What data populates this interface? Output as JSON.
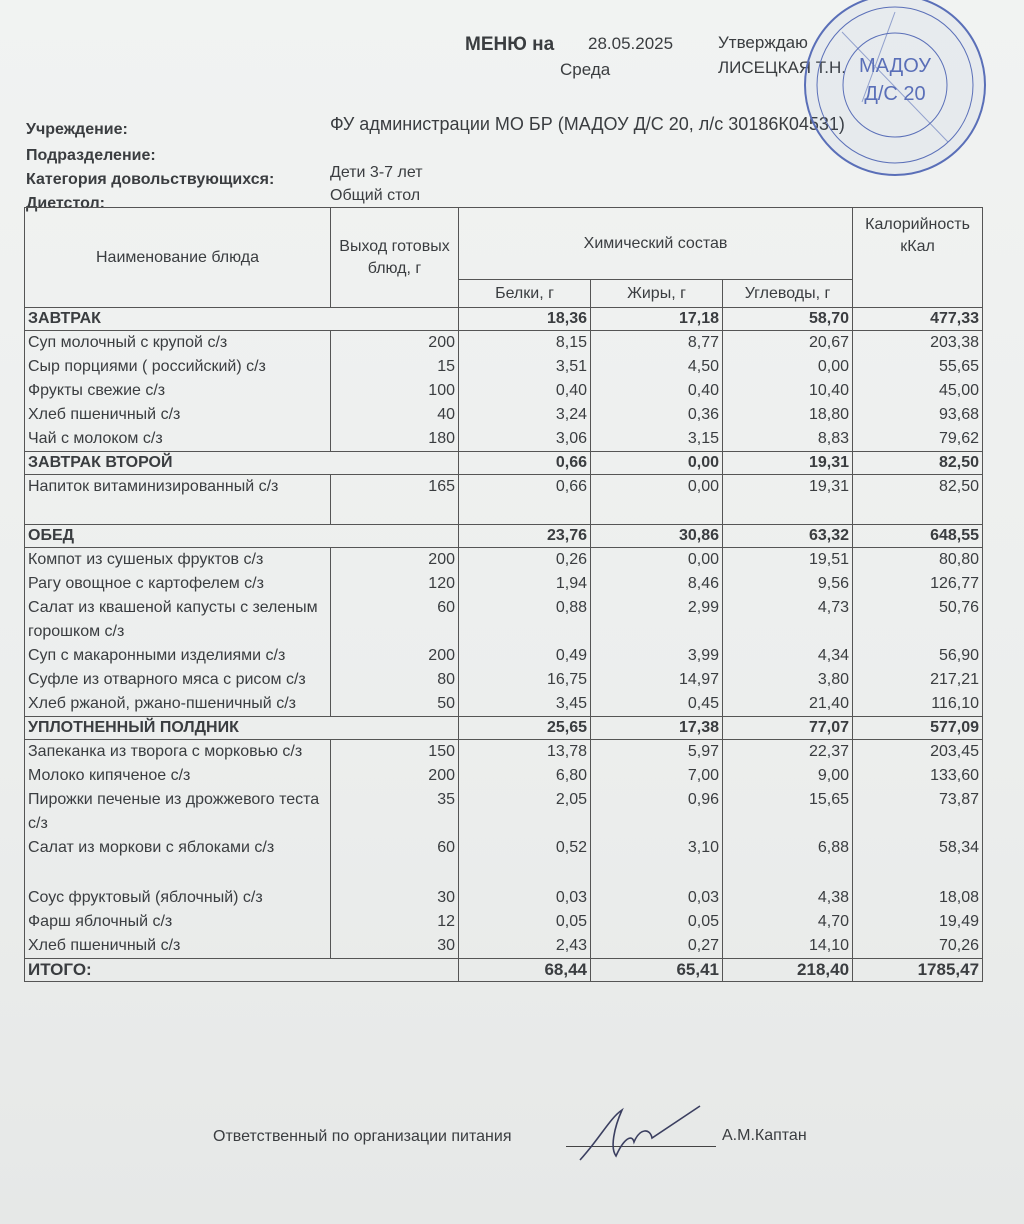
{
  "header": {
    "title": "МЕНЮ на",
    "date": "28.05.2025",
    "weekday": "Среда",
    "approve_label": "Утверждаю",
    "approver": "ЛИСЕЦКАЯ Т.Н."
  },
  "info": [
    {
      "label": "Учреждение:",
      "value": "ФУ администрации МО БР (МАДОУ Д/С 20, л/с 30186К04531)"
    },
    {
      "label": "Подразделение:",
      "value": ""
    },
    {
      "label": "Категория довольствующихся:",
      "value": "Дети 3-7 лет"
    },
    {
      "label": "Диетстол:",
      "value": "Общий стол"
    }
  ],
  "table": {
    "headers": {
      "name": "Наименование блюда",
      "yield": "Выход готовых блюд, г",
      "chem": "Химический состав",
      "kcal": "Калорийность кКал",
      "protein": "Белки, г",
      "fat": "Жиры, г",
      "carbs": "Углеводы, г"
    },
    "sections": [
      {
        "name": "ЗАВТРАК",
        "protein": "18,36",
        "fat": "17,18",
        "carbs": "58,70",
        "kcal": "477,33",
        "items": [
          {
            "name": "Суп молочный с крупой с/з",
            "yield": "200",
            "protein": "8,15",
            "fat": "8,77",
            "carbs": "20,67",
            "kcal": "203,38"
          },
          {
            "name": "Сыр порциями ( российский) с/з",
            "yield": "15",
            "protein": "3,51",
            "fat": "4,50",
            "carbs": "0,00",
            "kcal": "55,65"
          },
          {
            "name": "Фрукты  свежие с/з",
            "yield": "100",
            "protein": "0,40",
            "fat": "0,40",
            "carbs": "10,40",
            "kcal": "45,00"
          },
          {
            "name": "Хлеб  пшеничный с/з",
            "yield": "40",
            "protein": "3,24",
            "fat": "0,36",
            "carbs": "18,80",
            "kcal": "93,68"
          },
          {
            "name": "Чай с молоком с/з",
            "yield": "180",
            "protein": "3,06",
            "fat": "3,15",
            "carbs": "8,83",
            "kcal": "79,62"
          }
        ]
      },
      {
        "name": "ЗАВТРАК ВТОРОЙ",
        "protein": "0,66",
        "fat": "0,00",
        "carbs": "19,31",
        "kcal": "82,50",
        "items": [
          {
            "name": "Напиток витаминизированный с/з",
            "yield": "165",
            "protein": "0,66",
            "fat": "0,00",
            "carbs": "19,31",
            "kcal": "82,50",
            "tall": true
          }
        ]
      },
      {
        "name": "ОБЕД",
        "protein": "23,76",
        "fat": "30,86",
        "carbs": "63,32",
        "kcal": "648,55",
        "items": [
          {
            "name": "Компот из сушеных фруктов с/з",
            "yield": "200",
            "protein": "0,26",
            "fat": "0,00",
            "carbs": "19,51",
            "kcal": "80,80"
          },
          {
            "name": "Рагу овощное с картофелем с/з",
            "yield": "120",
            "protein": "1,94",
            "fat": "8,46",
            "carbs": "9,56",
            "kcal": "126,77"
          },
          {
            "name": "Салат из квашеной капусты с зеленым горошком с/з",
            "yield": "60",
            "protein": "0,88",
            "fat": "2,99",
            "carbs": "4,73",
            "kcal": "50,76"
          },
          {
            "name": "Суп с макаронными изделиями с/з",
            "yield": "200",
            "protein": "0,49",
            "fat": "3,99",
            "carbs": "4,34",
            "kcal": "56,90"
          },
          {
            "name": "Суфле из отварного мяса с рисом с/з",
            "yield": "80",
            "protein": "16,75",
            "fat": "14,97",
            "carbs": "3,80",
            "kcal": "217,21"
          },
          {
            "name": "Хлеб ржаной, ржано-пшеничный с/з",
            "yield": "50",
            "protein": "3,45",
            "fat": "0,45",
            "carbs": "21,40",
            "kcal": "116,10"
          }
        ]
      },
      {
        "name": "УПЛОТНЕННЫЙ ПОЛДНИК",
        "protein": "25,65",
        "fat": "17,38",
        "carbs": "77,07",
        "kcal": "577,09",
        "items": [
          {
            "name": "Запеканка из творога с морковью с/з",
            "yield": "150",
            "protein": "13,78",
            "fat": "5,97",
            "carbs": "22,37",
            "kcal": "203,45"
          },
          {
            "name": "Молоко  кипяченое с/з",
            "yield": "200",
            "protein": "6,80",
            "fat": "7,00",
            "carbs": "9,00",
            "kcal": "133,60"
          },
          {
            "name": "Пирожки печеные из дрожжевого теста с/з",
            "yield": "35",
            "protein": "2,05",
            "fat": "0,96",
            "carbs": "15,65",
            "kcal": "73,87"
          },
          {
            "name": "Салат из моркови с яблоками с/з",
            "yield": "60",
            "protein": "0,52",
            "fat": "3,10",
            "carbs": "6,88",
            "kcal": "58,34",
            "tall": true
          },
          {
            "name": "Соус фруктовый (яблочный) с/з",
            "yield": "30",
            "protein": "0,03",
            "fat": "0,03",
            "carbs": "4,38",
            "kcal": "18,08"
          },
          {
            "name": "Фарш яблочный с/з",
            "yield": "12",
            "protein": "0,05",
            "fat": "0,05",
            "carbs": "4,70",
            "kcal": "19,49"
          },
          {
            "name": "Хлеб  пшеничный   с/з",
            "yield": "30",
            "protein": "2,43",
            "fat": "0,27",
            "carbs": "14,10",
            "kcal": "70,26"
          }
        ]
      }
    ],
    "total": {
      "label": "ИТОГО:",
      "protein": "68,44",
      "fat": "65,41",
      "carbs": "218,40",
      "kcal": "1785,47"
    }
  },
  "footer": {
    "responsible_label": "Ответственный по организации питания",
    "responsible_name": "А.М.Каптан"
  },
  "stamp": {
    "line1": "МАДОУ",
    "line2": "Д/С 20",
    "color": "#5a6fb8"
  }
}
